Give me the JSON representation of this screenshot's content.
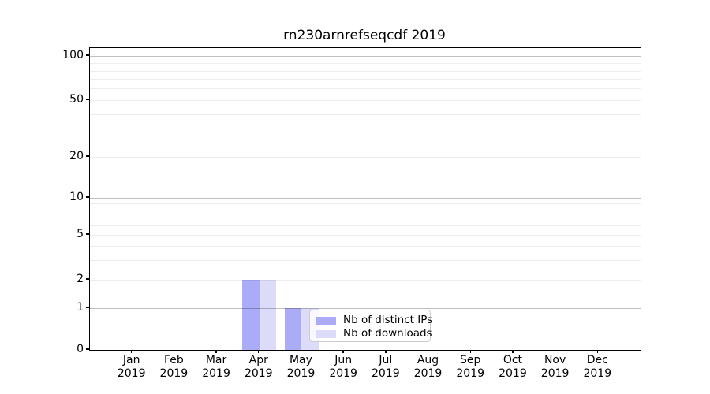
{
  "title": "rn230arnrefseqcdf 2019",
  "chart_data": {
    "type": "bar",
    "title": "rn230arnrefseqcdf 2019",
    "categories": [
      "Jan",
      "Feb",
      "Mar",
      "Apr",
      "May",
      "Jun",
      "Jul",
      "Aug",
      "Sep",
      "Oct",
      "Nov",
      "Dec"
    ],
    "category_year": "2019",
    "series": [
      {
        "name": "Nb of distinct IPs",
        "color": "#ababf8",
        "values": [
          0,
          0,
          0,
          2,
          1,
          0,
          0,
          0,
          0,
          0,
          0,
          0
        ]
      },
      {
        "name": "Nb of downloads",
        "color": "#dcdcfa",
        "values": [
          0,
          0,
          0,
          2,
          1,
          0,
          0,
          0,
          0,
          0,
          0,
          0
        ]
      }
    ],
    "xlabel": "",
    "ylabel": "",
    "y_axis": {
      "scale": "symlog",
      "tick_labels": [
        0,
        1,
        2,
        5,
        10,
        20,
        50,
        100
      ],
      "major_grid_values": [
        1,
        10,
        100
      ],
      "minor_grid_values": [
        2,
        3,
        4,
        5,
        6,
        7,
        8,
        9,
        20,
        30,
        40,
        50,
        60,
        70,
        80,
        90
      ],
      "ylim": [
        0,
        120
      ]
    },
    "grid": true,
    "legend": {
      "position": "lower-right-of-center",
      "entries": [
        "Nb of distinct IPs",
        "Nb of downloads"
      ]
    }
  },
  "colors": {
    "bar_distinct_ips": "#ababf8",
    "bar_downloads": "#dcdcfa",
    "major_grid": "#bfbfbf",
    "minor_grid": "#ededed",
    "axis": "#000000",
    "legend_border": "#cccccc"
  }
}
